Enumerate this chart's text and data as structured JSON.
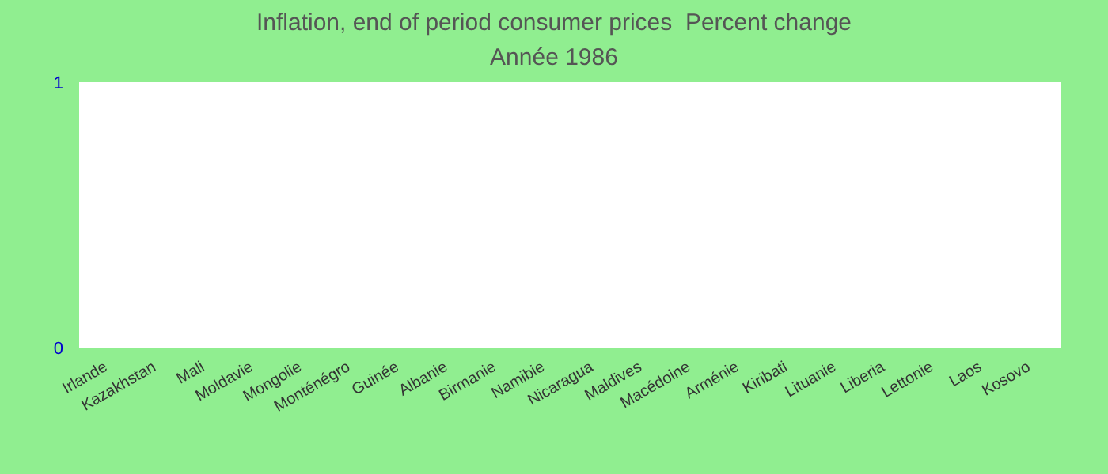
{
  "chart_data": {
    "type": "bar",
    "title": "Inflation, end of period consumer prices  Percent change",
    "subtitle": "Année 1986",
    "categories": [
      "Irlande",
      "Kazakhstan",
      "Mali",
      "Moldavie",
      "Mongolie",
      "Monténégro",
      "Guinée",
      "Albanie",
      "Birmanie",
      "Namibie",
      "Nicaragua",
      "Maldives",
      "Macédoine",
      "Arménie",
      "Kiribati",
      "Lituanie",
      "Liberia",
      "Lettonie",
      "Laos",
      "Kosovo"
    ],
    "values": [
      null,
      null,
      null,
      null,
      null,
      null,
      null,
      null,
      null,
      null,
      null,
      null,
      null,
      null,
      null,
      null,
      null,
      null,
      null,
      null
    ],
    "ylim": [
      0,
      1
    ],
    "yticks": [
      0,
      1
    ]
  }
}
